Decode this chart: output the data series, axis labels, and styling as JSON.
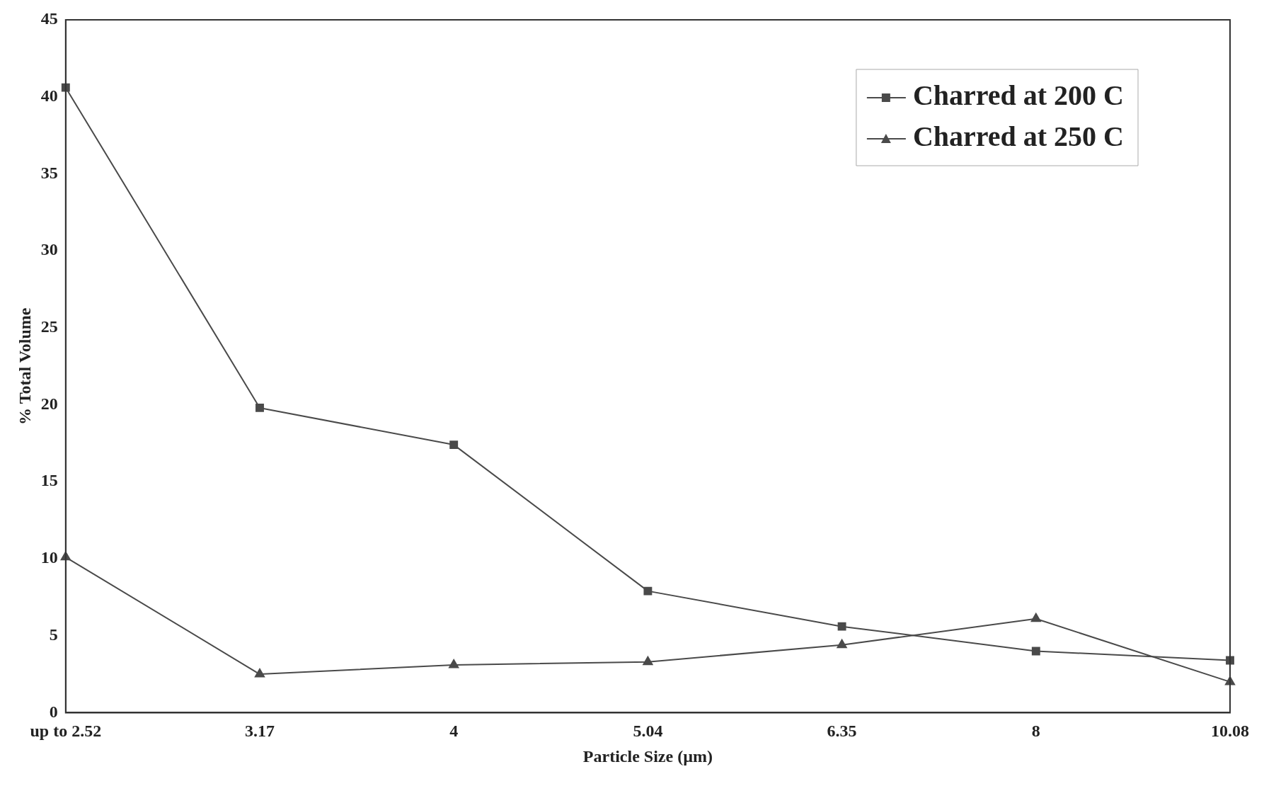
{
  "chart_data": {
    "type": "line",
    "xlabel": "Particle Size (µm)",
    "ylabel": "% Total Volume",
    "categories": [
      "up to 2.52",
      "3.17",
      "4",
      "5.04",
      "6.35",
      "8",
      "10.08"
    ],
    "series": [
      {
        "name": "Charred at 200 C",
        "color": "#4a4a4a",
        "marker": "square",
        "values": [
          40.6,
          19.8,
          17.4,
          7.9,
          5.6,
          4.0,
          3.4
        ]
      },
      {
        "name": "Charred at 250 C",
        "color": "#4a4a4a",
        "marker": "triangle",
        "values": [
          10.1,
          2.5,
          3.1,
          3.3,
          4.4,
          6.1,
          2.0
        ]
      }
    ],
    "ylim": [
      0,
      45
    ],
    "yticks": [
      0,
      5,
      10,
      15,
      20,
      25,
      30,
      35,
      40,
      45
    ],
    "grid": false,
    "legend": "top right",
    "line_style": "solid"
  }
}
